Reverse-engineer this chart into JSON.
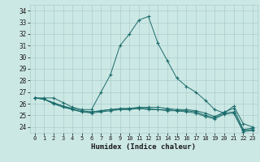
{
  "xlabel": "Humidex (Indice chaleur)",
  "background_color": "#cce8e4",
  "grid_color": "#aacccc",
  "line_color": "#1a6b6b",
  "xlim": [
    -0.5,
    23.5
  ],
  "ylim": [
    23.5,
    34.5
  ],
  "yticks": [
    24,
    25,
    26,
    27,
    28,
    29,
    30,
    31,
    32,
    33,
    34
  ],
  "xticks": [
    0,
    1,
    2,
    3,
    4,
    5,
    6,
    7,
    8,
    9,
    10,
    11,
    12,
    13,
    14,
    15,
    16,
    17,
    18,
    19,
    20,
    21,
    22,
    23
  ],
  "series": [
    [
      26.5,
      26.5,
      26.5,
      26.1,
      25.7,
      25.5,
      25.5,
      27.0,
      28.5,
      31.0,
      32.0,
      33.2,
      33.5,
      31.2,
      29.7,
      28.2,
      27.5,
      27.0,
      26.3,
      25.5,
      25.2,
      25.8,
      24.3,
      24.0
    ],
    [
      26.5,
      26.4,
      26.1,
      25.8,
      25.6,
      25.4,
      25.3,
      25.4,
      25.5,
      25.6,
      25.6,
      25.7,
      25.7,
      25.7,
      25.6,
      25.5,
      25.5,
      25.4,
      25.2,
      24.9,
      25.3,
      25.6,
      23.8,
      23.9
    ],
    [
      26.5,
      26.4,
      26.0,
      25.8,
      25.5,
      25.3,
      25.3,
      25.4,
      25.5,
      25.5,
      25.6,
      25.6,
      25.6,
      25.5,
      25.5,
      25.4,
      25.4,
      25.3,
      25.0,
      24.8,
      25.2,
      25.3,
      23.7,
      23.8
    ],
    [
      26.5,
      26.4,
      26.0,
      25.7,
      25.5,
      25.3,
      25.2,
      25.3,
      25.4,
      25.5,
      25.5,
      25.6,
      25.5,
      25.5,
      25.4,
      25.4,
      25.3,
      25.2,
      24.9,
      24.7,
      25.1,
      25.2,
      23.6,
      23.7
    ]
  ]
}
